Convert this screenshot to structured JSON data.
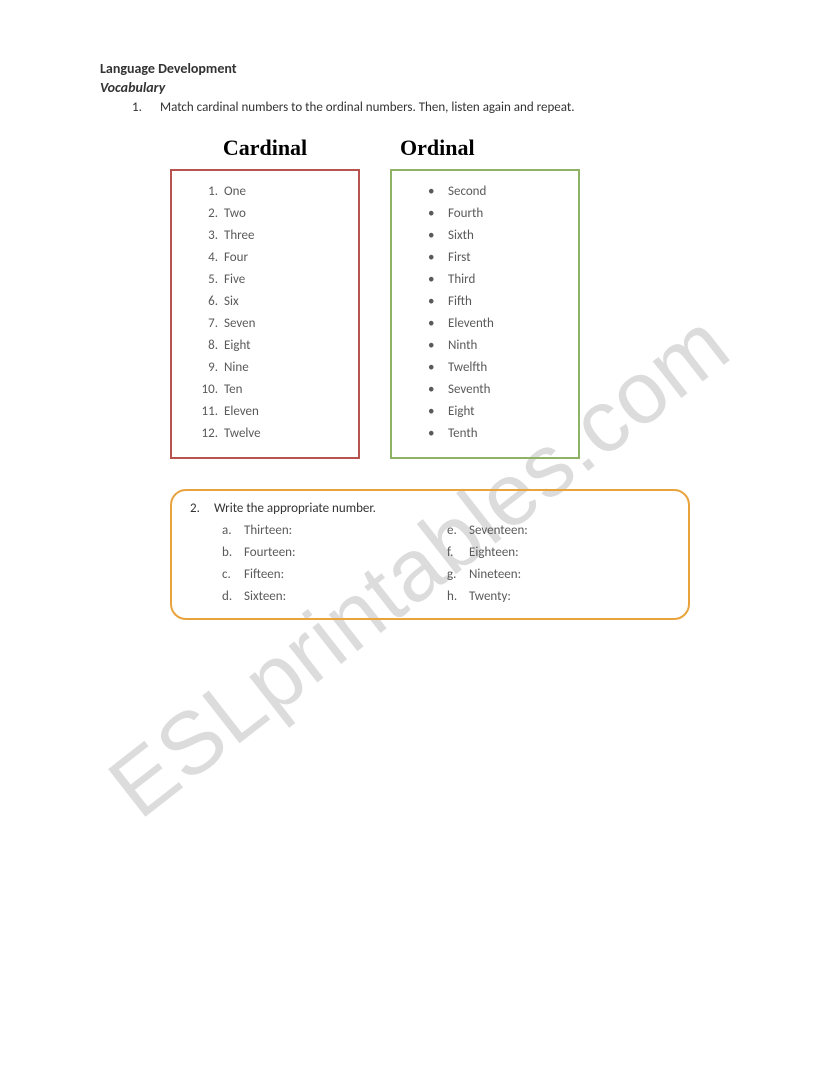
{
  "header": {
    "title": "Language Development",
    "subtitle": "Vocabulary"
  },
  "exercise1": {
    "number": "1.",
    "text": "Match cardinal numbers to the ordinal numbers. Then, listen again and repeat.",
    "cardinal_head": "Cardinal",
    "ordinal_head": "Ordinal",
    "cardinal": [
      {
        "n": "1.",
        "w": "One"
      },
      {
        "n": "2.",
        "w": "Two"
      },
      {
        "n": "3.",
        "w": "Three"
      },
      {
        "n": "4.",
        "w": "Four"
      },
      {
        "n": "5.",
        "w": "Five"
      },
      {
        "n": "6.",
        "w": "Six"
      },
      {
        "n": "7.",
        "w": "Seven"
      },
      {
        "n": "8.",
        "w": "Eight"
      },
      {
        "n": "9.",
        "w": "Nine"
      },
      {
        "n": "10.",
        "w": "Ten"
      },
      {
        "n": "11.",
        "w": "Eleven"
      },
      {
        "n": "12.",
        "w": "Twelve"
      }
    ],
    "ordinal": [
      "Second",
      "Fourth",
      "Sixth",
      "First",
      "Third",
      "Fifth",
      "Eleventh",
      "Ninth",
      "Twelfth",
      "Seventh",
      "Eight",
      "Tenth"
    ]
  },
  "exercise2": {
    "number": "2.",
    "text": "Write the appropriate number.",
    "left": [
      {
        "l": "a.",
        "w": "Thirteen:"
      },
      {
        "l": "b.",
        "w": "Fourteen:"
      },
      {
        "l": "c.",
        "w": "Fifteen:"
      },
      {
        "l": "d.",
        "w": "Sixteen:"
      }
    ],
    "right": [
      {
        "l": "e.",
        "w": "Seventeen:"
      },
      {
        "l": "f.",
        "w": "Eighteen:"
      },
      {
        "l": "g.",
        "w": "Nineteen:"
      },
      {
        "l": "h.",
        "w": "Twenty:"
      }
    ]
  },
  "watermark": "ESLprintables.com",
  "colors": {
    "cardinal_border": "#b85450",
    "ordinal_border": "#8fb366",
    "section2_border": "#e8a33d",
    "text_dark": "#333333",
    "text_body": "#595959",
    "watermark": "#dcdcdc",
    "background": "#ffffff"
  },
  "fonts": {
    "body": "Calibri",
    "column_heads": "Times New Roman",
    "head_size_pt": 22,
    "body_size_pt": 13
  }
}
